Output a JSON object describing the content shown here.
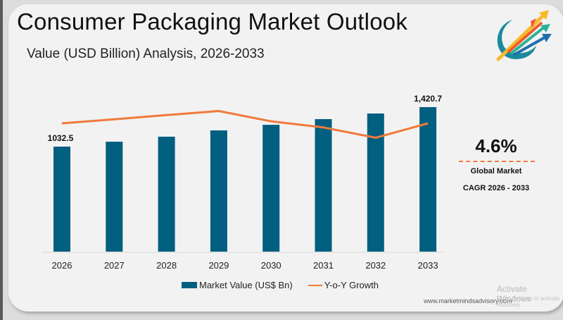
{
  "header": {
    "title": "Consumer Packaging Market Outlook",
    "subtitle": "Value (USD Billion) Analysis, 2026-2033",
    "logo_icon": "arrows-swoosh-logo"
  },
  "cagr": {
    "value": "4.6%",
    "label_line1": "Global Market",
    "label_line2": "CAGR 2026 - 2033"
  },
  "legend": {
    "bar_label": "Market Value (US$ Bn)",
    "line_label": "Y-o-Y Growth"
  },
  "footer": {
    "website": "www.marketmindsadvisory.com",
    "watermark_line1": "Activate Windows",
    "watermark_line2": "Go to Settings to activate Windows."
  },
  "colors": {
    "bar": "#015f80",
    "line": "#f07a3a",
    "background": "#f2f2f2"
  },
  "chart_data": {
    "type": "bar",
    "title": "Consumer Packaging Market Outlook",
    "subtitle": "Value (USD Billion) Analysis, 2026-2033",
    "xlabel": "",
    "ylabel": "",
    "categories": [
      "2026",
      "2027",
      "2028",
      "2029",
      "2030",
      "2031",
      "2032",
      "2033"
    ],
    "series": [
      {
        "name": "Market Value (US$ Bn)",
        "type": "bar",
        "values": [
          1032.5,
          1081,
          1130,
          1192,
          1247,
          1303,
          1358,
          1420.7
        ],
        "data_labels": [
          "1032.5",
          "",
          "",
          "",
          "",
          "",
          "",
          "1,420.7"
        ]
      },
      {
        "name": "Y-o-Y Growth",
        "type": "line",
        "unit": "%",
        "values": [
          4.6,
          4.7,
          4.8,
          4.9,
          4.65,
          4.5,
          4.25,
          4.6
        ]
      }
    ],
    "ylim": [
      0,
      1420.7
    ],
    "grid": false,
    "y_axis_visible": false,
    "legend_position": "bottom"
  }
}
